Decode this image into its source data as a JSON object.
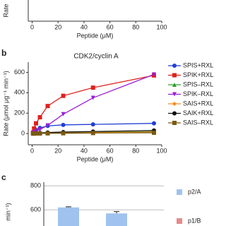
{
  "chart_data": [
    {
      "type": "axis",
      "ylabel": "Rate",
      "xlabel": "Peptide (μM)",
      "xlim": [
        -3,
        100
      ],
      "xticks": [
        0,
        20,
        40,
        60,
        80,
        100
      ]
    },
    {
      "type": "scatter",
      "panel": "b",
      "title": "CDK2/cyclin A",
      "xlabel": "Peptide (μM)",
      "ylabel": "Rate (μmol μg⁻¹ min⁻¹)",
      "xlim": [
        -3,
        100
      ],
      "xticks": [
        0,
        20,
        40,
        60,
        80,
        100
      ],
      "ylim": [
        -110,
        700
      ],
      "yticks": [
        0,
        200,
        400,
        600
      ],
      "x": [
        0.7,
        1.5,
        3,
        6,
        12,
        24,
        47,
        94
      ],
      "series": [
        {
          "name": "SPIS+RXL",
          "color": "#1f3fd8",
          "marker": "circle",
          "values": [
            5,
            20,
            35,
            55,
            75,
            85,
            90,
            100
          ]
        },
        {
          "name": "SPIK+RXL",
          "color": "#e0201c",
          "marker": "square",
          "values": [
            10,
            50,
            100,
            160,
            270,
            370,
            450,
            570
          ]
        },
        {
          "name": "SPIS–RXL",
          "color": "#2ca02c",
          "marker": "triangle",
          "values": [
            0,
            1,
            2,
            3,
            5,
            8,
            12,
            20
          ]
        },
        {
          "name": "SPIK–RXL",
          "color": "#9b1fd0",
          "marker": "triangle-down",
          "values": [
            3,
            10,
            20,
            40,
            80,
            190,
            350,
            580
          ]
        },
        {
          "name": "SAIS+RXL",
          "color": "#f28c1c",
          "marker": "diamond",
          "values": [
            0,
            1,
            2,
            3,
            4,
            6,
            10,
            15
          ]
        },
        {
          "name": "SAIK+RXL",
          "color": "#111111",
          "marker": "circle",
          "values": [
            0,
            2,
            4,
            6,
            10,
            15,
            20,
            30
          ]
        },
        {
          "name": "SAIS–RXL",
          "color": "#7a5a10",
          "marker": "square",
          "values": [
            0,
            0,
            1,
            1,
            2,
            3,
            5,
            8
          ]
        }
      ]
    },
    {
      "type": "bar",
      "panel": "c",
      "ylabel": "min⁻¹)",
      "ylim": [
        465,
        830
      ],
      "yticks": [
        600,
        800
      ],
      "categories": [
        null,
        null
      ],
      "series": [
        {
          "name": "p2/A",
          "color": "#9fc3ee",
          "values": [
            620,
            570
          ],
          "errors": [
            5,
            15
          ]
        },
        {
          "name": "p1/B",
          "color": "#e88a8a",
          "values": [
            null,
            null
          ]
        }
      ]
    }
  ]
}
